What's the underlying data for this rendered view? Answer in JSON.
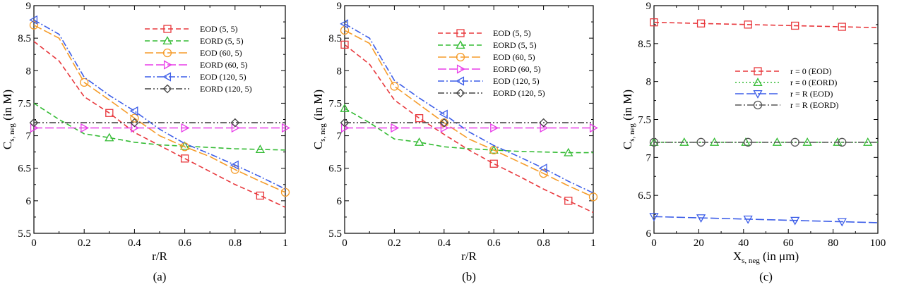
{
  "chart_data": [
    {
      "type": "line",
      "panel_label": "(a)",
      "xlabel": "r/R",
      "ylabel": "C",
      "ylabel_sub": "s, neg",
      "ylabel_unit": " (in M)",
      "xlim": [
        0,
        1
      ],
      "ylim": [
        5.5,
        9
      ],
      "xticks": [
        0,
        0.2,
        0.4,
        0.6,
        0.8,
        1
      ],
      "xtick_labels": [
        "0",
        "0.2",
        "0.4",
        "0.6",
        "0.8",
        "1"
      ],
      "yticks": [
        5.5,
        6,
        6.5,
        7,
        7.5,
        8,
        8.5,
        9
      ],
      "ytick_labels": [
        "5.5",
        "6",
        "6.5",
        "7",
        "7.5",
        "8",
        "8.5",
        "9"
      ],
      "grid": false,
      "legend_position": "top-right",
      "series": [
        {
          "name": "EOD (5, 5)",
          "color": "#e8383d",
          "dash": "dashed",
          "marker": "square",
          "x": [
            0,
            0.1,
            0.2,
            0.3,
            0.4,
            0.5,
            0.6,
            0.7,
            0.8,
            0.9,
            1
          ],
          "y": [
            8.45,
            8.15,
            7.6,
            7.35,
            7.05,
            6.85,
            6.65,
            6.45,
            6.25,
            6.08,
            5.9
          ],
          "marker_x": [
            0.3,
            0.6,
            0.9
          ]
        },
        {
          "name": "EORD (5, 5)",
          "color": "#33bb33",
          "dash": "dashed",
          "marker": "triangle-up",
          "x": [
            0,
            0.1,
            0.2,
            0.3,
            0.4,
            0.5,
            0.6,
            0.7,
            0.8,
            0.9,
            1
          ],
          "y": [
            7.5,
            7.25,
            7.03,
            6.97,
            6.9,
            6.86,
            6.84,
            6.82,
            6.8,
            6.79,
            6.78
          ],
          "marker_x": [
            0.3,
            0.6,
            0.9
          ]
        },
        {
          "name": "EOD (60, 5)",
          "color": "#f59c2a",
          "dash": "longdash",
          "marker": "circle",
          "x": [
            0,
            0.1,
            0.2,
            0.3,
            0.4,
            0.5,
            0.6,
            0.7,
            0.8,
            0.9,
            1
          ],
          "y": [
            8.7,
            8.5,
            7.82,
            7.55,
            7.27,
            7.0,
            6.83,
            6.68,
            6.48,
            6.3,
            6.13
          ],
          "marker_x": [
            0,
            0.2,
            0.4,
            0.6,
            0.8,
            1
          ]
        },
        {
          "name": "EORD (60, 5)",
          "color": "#e83ee8",
          "dash": "longdash",
          "marker": "triangle-right",
          "x": [
            0,
            1
          ],
          "y": [
            7.12,
            7.12
          ],
          "marker_x": [
            0,
            0.2,
            0.4,
            0.6,
            0.8,
            1
          ]
        },
        {
          "name": "EOD (120, 5)",
          "color": "#3d5ee8",
          "dash": "dashdot",
          "marker": "triangle-left",
          "x": [
            0,
            0.1,
            0.2,
            0.3,
            0.4,
            0.5,
            0.6,
            0.7,
            0.8,
            0.9,
            1
          ],
          "y": [
            8.78,
            8.56,
            7.9,
            7.62,
            7.38,
            7.1,
            6.88,
            6.72,
            6.55,
            6.37,
            6.18
          ],
          "marker_x": [
            0,
            0.4,
            0.8
          ]
        },
        {
          "name": "EORD (120, 5)",
          "color": "#444444",
          "dash": "dashdotdot",
          "marker": "diamond",
          "x": [
            0,
            1
          ],
          "y": [
            7.2,
            7.2
          ],
          "marker_x": [
            0,
            0.4,
            0.8
          ]
        }
      ]
    },
    {
      "type": "line",
      "panel_label": "(b)",
      "xlabel": "r/R",
      "ylabel": "C",
      "ylabel_sub": "s, neg",
      "ylabel_unit": " (in M)",
      "xlim": [
        0,
        1
      ],
      "ylim": [
        5.5,
        9
      ],
      "xticks": [
        0,
        0.2,
        0.4,
        0.6,
        0.8,
        1
      ],
      "xtick_labels": [
        "0",
        "0.2",
        "0.4",
        "0.6",
        "0.8",
        "1"
      ],
      "yticks": [
        5.5,
        6,
        6.5,
        7,
        7.5,
        8,
        8.5,
        9
      ],
      "ytick_labels": [
        "5.5",
        "6",
        "6.5",
        "7",
        "7.5",
        "8",
        "8.5",
        "9"
      ],
      "grid": false,
      "legend_position": "top-right",
      "series": [
        {
          "name": "EOD (5, 5)",
          "color": "#e8383d",
          "dash": "dashed",
          "marker": "square",
          "x": [
            0,
            0.1,
            0.2,
            0.3,
            0.4,
            0.5,
            0.6,
            0.7,
            0.8,
            0.9,
            1
          ],
          "y": [
            8.4,
            8.1,
            7.55,
            7.27,
            7.02,
            6.78,
            6.57,
            6.38,
            6.18,
            6.0,
            5.82
          ],
          "marker_x": [
            0,
            0.3,
            0.6,
            0.9
          ]
        },
        {
          "name": "EORD (5, 5)",
          "color": "#33bb33",
          "dash": "dashed",
          "marker": "triangle-up",
          "x": [
            0,
            0.1,
            0.2,
            0.3,
            0.4,
            0.5,
            0.6,
            0.7,
            0.8,
            0.9,
            1
          ],
          "y": [
            7.42,
            7.2,
            6.95,
            6.9,
            6.83,
            6.8,
            6.78,
            6.76,
            6.75,
            6.74,
            6.74
          ],
          "marker_x": [
            0,
            0.3,
            0.6,
            0.9
          ]
        },
        {
          "name": "EOD (60, 5)",
          "color": "#f59c2a",
          "dash": "longdash",
          "marker": "circle",
          "x": [
            0,
            0.1,
            0.2,
            0.3,
            0.4,
            0.5,
            0.6,
            0.7,
            0.8,
            0.9,
            1
          ],
          "y": [
            8.62,
            8.42,
            7.76,
            7.48,
            7.2,
            6.95,
            6.78,
            6.6,
            6.42,
            6.23,
            6.06
          ],
          "marker_x": [
            0,
            0.2,
            0.4,
            0.6,
            0.8,
            1
          ]
        },
        {
          "name": "EORD (60, 5)",
          "color": "#e83ee8",
          "dash": "longdash",
          "marker": "triangle-right",
          "x": [
            0,
            1
          ],
          "y": [
            7.12,
            7.12
          ],
          "marker_x": [
            0,
            0.2,
            0.4,
            0.6,
            0.8,
            1
          ]
        },
        {
          "name": "EOD (120, 5)",
          "color": "#3d5ee8",
          "dash": "dashdot",
          "marker": "triangle-left",
          "x": [
            0,
            0.1,
            0.2,
            0.3,
            0.4,
            0.5,
            0.6,
            0.7,
            0.8,
            0.9,
            1
          ],
          "y": [
            8.72,
            8.5,
            7.85,
            7.58,
            7.33,
            7.06,
            6.85,
            6.68,
            6.5,
            6.3,
            6.12
          ],
          "marker_x": [
            0,
            0.4,
            0.8
          ]
        },
        {
          "name": "EORD (120, 5)",
          "color": "#444444",
          "dash": "dashdotdot",
          "marker": "diamond",
          "x": [
            0,
            1
          ],
          "y": [
            7.2,
            7.2
          ],
          "marker_x": [
            0,
            0.4,
            0.8
          ]
        }
      ]
    },
    {
      "type": "line",
      "panel_label": "(c)",
      "xlabel": "X",
      "xlabel_sub": "s, neg",
      "xlabel_unit": " (in μm)",
      "ylabel": "C",
      "ylabel_sub": "s, neg",
      "ylabel_unit": " (in M)",
      "xlim": [
        0,
        100
      ],
      "ylim": [
        6,
        9
      ],
      "xticks": [
        0,
        20,
        40,
        60,
        80,
        100
      ],
      "xtick_labels": [
        "0",
        "20",
        "40",
        "60",
        "80",
        "100"
      ],
      "yticks": [
        6,
        6.5,
        7,
        7.5,
        8,
        8.5,
        9
      ],
      "ytick_labels": [
        "6",
        "6.5",
        "7",
        "7.5",
        "8",
        "8.5",
        "9"
      ],
      "grid": false,
      "legend_position": "center-right",
      "series": [
        {
          "name": "r = 0 (EOD)",
          "color": "#e8383d",
          "dash": "dashed",
          "marker": "square",
          "x": [
            0,
            100
          ],
          "y": [
            8.78,
            8.71
          ],
          "marker_x": [
            0,
            21,
            42,
            63,
            84
          ]
        },
        {
          "name": "r = 0 (EORD)",
          "color": "#33bb33",
          "dash": "dotted",
          "marker": "triangle-up",
          "x": [
            0,
            100
          ],
          "y": [
            7.2,
            7.2
          ],
          "marker_x": [
            0,
            13.5,
            27,
            41,
            55,
            68.5,
            82,
            95.5
          ]
        },
        {
          "name": "r = R (EOD)",
          "color": "#3d5ee8",
          "dash": "longdash",
          "marker": "triangle-down",
          "x": [
            0,
            100
          ],
          "y": [
            6.22,
            6.14
          ],
          "marker_x": [
            0,
            21,
            42,
            63,
            84
          ]
        },
        {
          "name": "r = R (EORD)",
          "color": "#555555",
          "dash": "dashdot",
          "marker": "circle",
          "x": [
            0,
            100
          ],
          "y": [
            7.2,
            7.2
          ],
          "marker_x": [
            0,
            21,
            42,
            63,
            84
          ]
        }
      ]
    }
  ]
}
